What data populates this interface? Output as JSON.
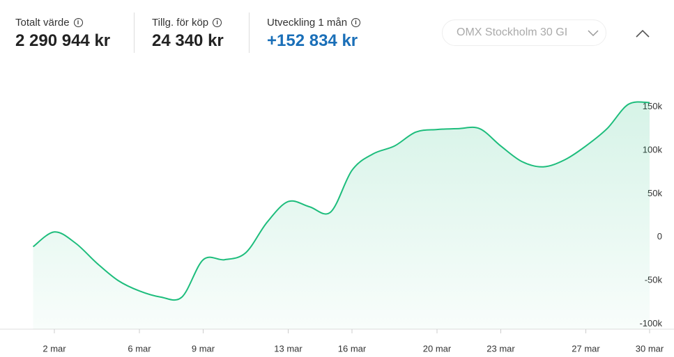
{
  "header": {
    "stats": [
      {
        "label": "Totalt värde",
        "value": "2 290 944 kr"
      },
      {
        "label": "Tillg. för köp",
        "value": "24 340 kr"
      },
      {
        "label": "Utveckling 1 mån",
        "value": "+152 834 kr"
      }
    ],
    "index_select": "OMX Stockholm 30 GI"
  },
  "chart_data": {
    "type": "line",
    "categories": [
      null,
      "2 mar",
      null,
      null,
      null,
      "6 mar",
      null,
      null,
      "9 mar",
      null,
      null,
      null,
      "13 mar",
      null,
      null,
      "16 mar",
      null,
      null,
      null,
      "20 mar",
      null,
      null,
      "23 mar",
      null,
      null,
      null,
      "27 mar",
      null,
      null,
      "30 mar"
    ],
    "series": [
      {
        "name": "Utveckling",
        "color": "#1dbd7c",
        "values": [
          -11000,
          6000,
          -7000,
          -30000,
          -50000,
          -62000,
          -69000,
          -69000,
          -26000,
          -26000,
          -18000,
          17000,
          41000,
          35000,
          29000,
          77000,
          96000,
          105000,
          121000,
          124000,
          125000,
          125000,
          105000,
          87000,
          81000,
          89000,
          105000,
          125000,
          153000,
          155000
        ]
      }
    ],
    "ylim": [
      -106000,
      193000
    ],
    "yticks": [
      {
        "value": 150000,
        "label": "150k"
      },
      {
        "value": 100000,
        "label": "100k"
      },
      {
        "value": 50000,
        "label": "50k"
      },
      0,
      {
        "value": -50000,
        "label": "-50k"
      },
      {
        "value": -100000,
        "label": "-100k"
      }
    ]
  }
}
